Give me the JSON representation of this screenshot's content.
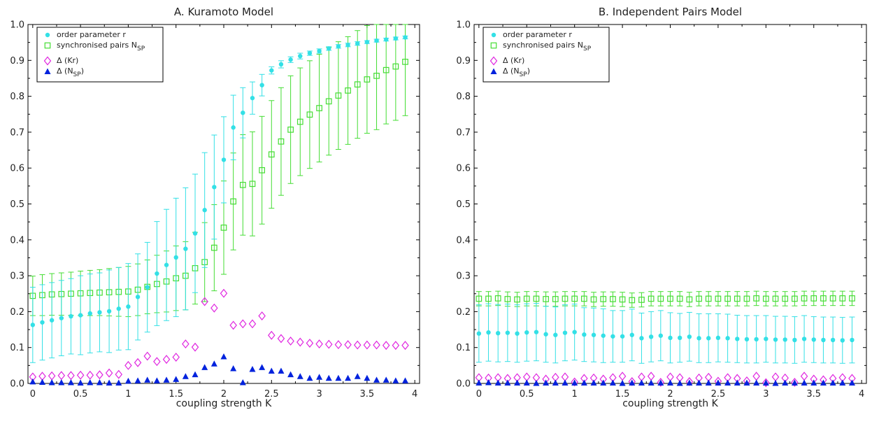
{
  "chart_data": [
    {
      "type": "scatter",
      "title": "A. Kuramoto Model",
      "xlabel": "coupling strength K",
      "ylabel": "",
      "xlim": [
        -0.05,
        4.05
      ],
      "ylim": [
        0,
        1.0
      ],
      "xticks": [
        "0",
        "0.5",
        "1",
        "1.5",
        "2",
        "2.5",
        "3",
        "3.5",
        "4"
      ],
      "yticks": [
        "0.0",
        "0.1",
        "0.2",
        "0.3",
        "0.4",
        "0.5",
        "0.6",
        "0.7",
        "0.8",
        "0.9",
        "1.0"
      ],
      "legend_position": "top-left",
      "x": [
        0,
        0.1,
        0.2,
        0.3,
        0.4,
        0.5,
        0.6,
        0.7,
        0.8,
        0.9,
        1.0,
        1.1,
        1.2,
        1.3,
        1.4,
        1.5,
        1.6,
        1.7,
        1.8,
        1.9,
        2.0,
        2.1,
        2.2,
        2.3,
        2.4,
        2.5,
        2.6,
        2.7,
        2.8,
        2.9,
        3.0,
        3.1,
        3.2,
        3.3,
        3.4,
        3.5,
        3.6,
        3.7,
        3.8,
        3.9
      ],
      "series": [
        {
          "name": "order parameter r",
          "marker": "circle",
          "color": "#33e0e6",
          "values": [
            0.163,
            0.17,
            0.176,
            0.182,
            0.187,
            0.19,
            0.195,
            0.198,
            0.201,
            0.208,
            0.214,
            0.241,
            0.268,
            0.306,
            0.33,
            0.351,
            0.375,
            0.418,
            0.483,
            0.547,
            0.623,
            0.713,
            0.754,
            0.795,
            0.831,
            0.872,
            0.889,
            0.902,
            0.912,
            0.92,
            0.926,
            0.933,
            0.939,
            0.943,
            0.947,
            0.951,
            0.955,
            0.958,
            0.961,
            0.964
          ],
          "errors": [
            0.105,
            0.105,
            0.105,
            0.105,
            0.105,
            0.11,
            0.11,
            0.11,
            0.115,
            0.115,
            0.12,
            0.12,
            0.125,
            0.145,
            0.155,
            0.165,
            0.17,
            0.165,
            0.16,
            0.145,
            0.12,
            0.09,
            0.07,
            0.045,
            0.03,
            0.01,
            0.01,
            0.008,
            0.008,
            0.006,
            0.006,
            0.005,
            0.005,
            0.005,
            0.005,
            0.004,
            0.004,
            0.004,
            0.004,
            0.004
          ]
        },
        {
          "name": "synchronised pairs N",
          "name_subscript": "SP",
          "marker": "square",
          "color": "#44dd33",
          "values": [
            0.244,
            0.246,
            0.248,
            0.249,
            0.25,
            0.251,
            0.252,
            0.253,
            0.254,
            0.255,
            0.256,
            0.261,
            0.269,
            0.277,
            0.284,
            0.293,
            0.3,
            0.321,
            0.338,
            0.378,
            0.434,
            0.507,
            0.553,
            0.556,
            0.594,
            0.638,
            0.674,
            0.707,
            0.729,
            0.749,
            0.767,
            0.786,
            0.802,
            0.816,
            0.833,
            0.847,
            0.857,
            0.873,
            0.883,
            0.896
          ],
          "errors": [
            0.055,
            0.057,
            0.058,
            0.059,
            0.06,
            0.062,
            0.063,
            0.064,
            0.066,
            0.068,
            0.07,
            0.072,
            0.075,
            0.08,
            0.085,
            0.09,
            0.095,
            0.1,
            0.11,
            0.12,
            0.13,
            0.135,
            0.14,
            0.145,
            0.15,
            0.15,
            0.15,
            0.15,
            0.15,
            0.15,
            0.15,
            0.15,
            0.15,
            0.15,
            0.15,
            0.15,
            0.15,
            0.15,
            0.15,
            0.15
          ]
        },
        {
          "name": "Δ (Kr)",
          "marker": "diamond",
          "color": "#e026e0",
          "values": [
            0.018,
            0.02,
            0.021,
            0.022,
            0.022,
            0.023,
            0.023,
            0.024,
            0.029,
            0.025,
            0.05,
            0.058,
            0.076,
            0.061,
            0.067,
            0.073,
            0.11,
            0.101,
            0.228,
            0.21,
            0.251,
            0.162,
            0.166,
            0.166,
            0.188,
            0.134,
            0.125,
            0.118,
            0.115,
            0.112,
            0.11,
            0.109,
            0.108,
            0.108,
            0.107,
            0.107,
            0.107,
            0.106,
            0.106,
            0.106
          ],
          "errors": []
        },
        {
          "name": "Δ (N",
          "name_subscript": "SP",
          "name_suffix": ")",
          "marker": "triangle",
          "color": "#0022dd",
          "values": [
            0.005,
            0.004,
            0.003,
            0.003,
            0.003,
            0.002,
            0.003,
            0.003,
            0.002,
            0.002,
            0.007,
            0.008,
            0.01,
            0.008,
            0.01,
            0.012,
            0.02,
            0.025,
            0.045,
            0.055,
            0.075,
            0.042,
            0.003,
            0.04,
            0.045,
            0.035,
            0.035,
            0.025,
            0.02,
            0.015,
            0.018,
            0.015,
            0.015,
            0.015,
            0.02,
            0.015,
            0.01,
            0.01,
            0.008,
            0.008
          ],
          "errors": []
        }
      ]
    },
    {
      "type": "scatter",
      "title": "B. Independent Pairs Model",
      "xlabel": "coupling strength K",
      "ylabel": "",
      "xlim": [
        -0.05,
        4.05
      ],
      "ylim": [
        0,
        1.0
      ],
      "xticks": [
        "0",
        "0.5",
        "1",
        "1.5",
        "2",
        "2.5",
        "3",
        "3.5",
        "4"
      ],
      "yticks": [
        "0.0",
        "0.1",
        "0.2",
        "0.3",
        "0.4",
        "0.5",
        "0.6",
        "0.7",
        "0.8",
        "0.9",
        "1.0"
      ],
      "legend_position": "top-left",
      "x": [
        0,
        0.1,
        0.2,
        0.3,
        0.4,
        0.5,
        0.6,
        0.7,
        0.8,
        0.9,
        1.0,
        1.1,
        1.2,
        1.3,
        1.4,
        1.5,
        1.6,
        1.7,
        1.8,
        1.9,
        2.0,
        2.1,
        2.2,
        2.3,
        2.4,
        2.5,
        2.6,
        2.7,
        2.8,
        2.9,
        3.0,
        3.1,
        3.2,
        3.3,
        3.4,
        3.5,
        3.6,
        3.7,
        3.8,
        3.9
      ],
      "series": [
        {
          "name": "order parameter r",
          "marker": "circle",
          "color": "#33e0e6",
          "values": [
            0.139,
            0.142,
            0.14,
            0.141,
            0.139,
            0.142,
            0.143,
            0.137,
            0.135,
            0.141,
            0.143,
            0.136,
            0.135,
            0.133,
            0.131,
            0.131,
            0.135,
            0.126,
            0.13,
            0.133,
            0.127,
            0.127,
            0.13,
            0.126,
            0.126,
            0.127,
            0.126,
            0.124,
            0.123,
            0.123,
            0.124,
            0.122,
            0.122,
            0.121,
            0.124,
            0.122,
            0.121,
            0.121,
            0.12,
            0.121
          ],
          "errors": [
            0.08,
            0.08,
            0.08,
            0.08,
            0.08,
            0.08,
            0.08,
            0.078,
            0.078,
            0.078,
            0.078,
            0.075,
            0.075,
            0.075,
            0.072,
            0.072,
            0.072,
            0.07,
            0.07,
            0.07,
            0.07,
            0.068,
            0.068,
            0.068,
            0.068,
            0.067,
            0.067,
            0.066,
            0.066,
            0.066,
            0.065,
            0.065,
            0.065,
            0.065,
            0.065,
            0.064,
            0.064,
            0.064,
            0.064,
            0.064
          ]
        },
        {
          "name": "synchronised pairs N",
          "name_subscript": "SP",
          "marker": "square",
          "color": "#44dd33",
          "values": [
            0.236,
            0.236,
            0.237,
            0.235,
            0.234,
            0.236,
            0.236,
            0.235,
            0.235,
            0.236,
            0.236,
            0.236,
            0.234,
            0.235,
            0.235,
            0.234,
            0.232,
            0.233,
            0.236,
            0.236,
            0.236,
            0.236,
            0.234,
            0.236,
            0.236,
            0.236,
            0.236,
            0.236,
            0.236,
            0.237,
            0.236,
            0.236,
            0.236,
            0.236,
            0.237,
            0.237,
            0.237,
            0.237,
            0.237,
            0.237
          ],
          "errors": [
            0.02,
            0.02,
            0.02,
            0.02,
            0.02,
            0.02,
            0.02,
            0.02,
            0.02,
            0.02,
            0.02,
            0.02,
            0.02,
            0.02,
            0.02,
            0.02,
            0.02,
            0.02,
            0.02,
            0.02,
            0.02,
            0.02,
            0.02,
            0.02,
            0.02,
            0.02,
            0.02,
            0.02,
            0.02,
            0.02,
            0.02,
            0.02,
            0.02,
            0.02,
            0.02,
            0.02,
            0.02,
            0.02,
            0.02,
            0.02
          ]
        },
        {
          "name": "Δ (Kr)",
          "marker": "diamond",
          "color": "#e026e0",
          "values": [
            0.016,
            0.015,
            0.016,
            0.014,
            0.016,
            0.018,
            0.016,
            0.012,
            0.017,
            0.018,
            0.004,
            0.014,
            0.015,
            0.012,
            0.016,
            0.02,
            0.005,
            0.018,
            0.02,
            0.003,
            0.018,
            0.016,
            0.005,
            0.015,
            0.017,
            0.006,
            0.016,
            0.014,
            0.007,
            0.02,
            0.002,
            0.018,
            0.015,
            0.003,
            0.02,
            0.012,
            0.01,
            0.014,
            0.016,
            0.014
          ],
          "errors": []
        },
        {
          "name": "Δ (N",
          "name_subscript": "SP",
          "name_suffix": ")",
          "marker": "triangle",
          "color": "#0022dd",
          "values": [
            0.002,
            0.003,
            0.002,
            0.002,
            0.002,
            0.002,
            0.001,
            0.002,
            0.002,
            0.002,
            0.002,
            0.002,
            0.002,
            0.002,
            0.002,
            0.001,
            0.002,
            0.002,
            0.002,
            0.002,
            0.002,
            0.001,
            0.002,
            0.002,
            0.002,
            0.002,
            0.002,
            0.002,
            0.002,
            0.002,
            0.002,
            0.001,
            0.002,
            0.002,
            0.002,
            0.002,
            0.002,
            0.002,
            0.002,
            0.002
          ],
          "errors": []
        }
      ]
    }
  ]
}
